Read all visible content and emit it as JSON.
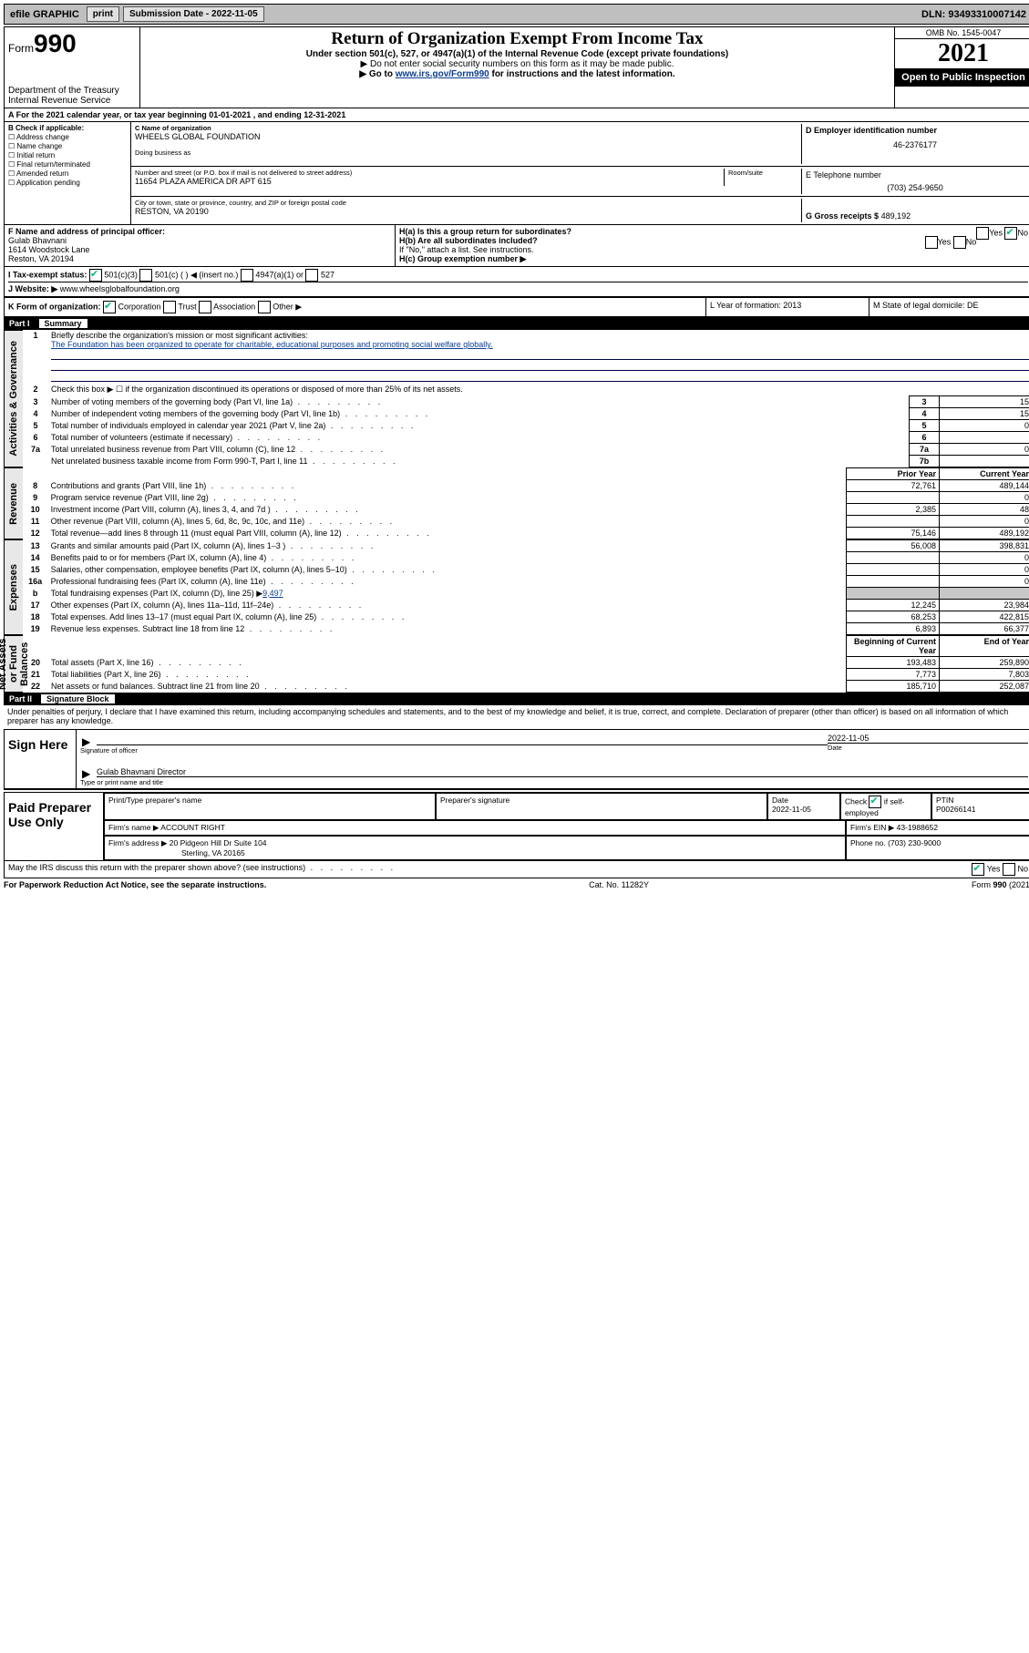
{
  "topbar": {
    "efile": "efile GRAPHIC",
    "print": "print",
    "subdate_label": "Submission Date - 2022-11-05",
    "dln": "DLN: 93493310007142"
  },
  "header": {
    "form_word": "Form",
    "form_num": "990",
    "dept": "Department of the Treasury",
    "irs": "Internal Revenue Service",
    "title": "Return of Organization Exempt From Income Tax",
    "sub1": "Under section 501(c), 527, or 4947(a)(1) of the Internal Revenue Code (except private foundations)",
    "sub2": "▶ Do not enter social security numbers on this form as it may be made public.",
    "sub3_pre": "▶ Go to ",
    "sub3_link": "www.irs.gov/Form990",
    "sub3_post": " for instructions and the latest information.",
    "omb": "OMB No. 1545-0047",
    "year": "2021",
    "open": "Open to Public Inspection"
  },
  "rowA": "A For the 2021 calendar year, or tax year beginning 01-01-2021    , and ending 12-31-2021",
  "colB": {
    "title": "B Check if applicable:",
    "addr": "Address change",
    "name": "Name change",
    "init": "Initial return",
    "final": "Final return/terminated",
    "amend": "Amended return",
    "app": "Application pending"
  },
  "colC": {
    "name_lbl": "C Name of organization",
    "name": "WHEELS GLOBAL FOUNDATION",
    "dba_lbl": "Doing business as",
    "addr_lbl": "Number and street (or P.O. box if mail is not delivered to street address)",
    "suite_lbl": "Room/suite",
    "addr": "11654 PLAZA AMERICA DR APT 615",
    "city_lbl": "City or town, state or province, country, and ZIP or foreign postal code",
    "city": "RESTON, VA  20190"
  },
  "colD": {
    "ein_lbl": "D Employer identification number",
    "ein": "46-2376177",
    "tel_lbl": "E Telephone number",
    "tel": "(703) 254-9650",
    "gross_lbl": "G Gross receipts $",
    "gross": "489,192"
  },
  "rowF": {
    "lbl": "F  Name and address of principal officer:",
    "name": "Gulab Bhavnani",
    "addr1": "1614 Woodstock Lane",
    "addr2": "Reston, VA  20194"
  },
  "rowH": {
    "ha": "H(a)  Is this a group return for subordinates?",
    "hb": "H(b)  Are all subordinates included?",
    "hb_note": "If \"No,\" attach a list. See instructions.",
    "hc": "H(c)  Group exemption number ▶",
    "yes": "Yes",
    "no": "No"
  },
  "rowI": {
    "lbl": "I     Tax-exempt status:",
    "c3": "501(c)(3)",
    "c": "501(c) (   ) ◀ (insert no.)",
    "a1": "4947(a)(1) or",
    "s527": "527"
  },
  "rowJ": {
    "lbl": "J    Website: ▶",
    "url": "www.wheelsglobalfoundation.org"
  },
  "rowK": {
    "lbl": "K Form of organization:",
    "corp": "Corporation",
    "trust": "Trust",
    "assoc": "Association",
    "other": "Other ▶"
  },
  "rowL": {
    "lbl": "L Year of formation: 2013"
  },
  "rowM": {
    "lbl": "M State of legal domicile: DE"
  },
  "part1": {
    "lbl": "Part I",
    "title": "Summary"
  },
  "summary": {
    "q1": "Briefly describe the organization's mission or most significant activities:",
    "mission": "The Foundation has been organized to operate for charitable, educational purposes and promoting social welfare globally.",
    "q2": "Check this box ▶ ☐  if the organization discontinued its operations or disposed of more than 25% of its net assets.",
    "rows": [
      {
        "n": "3",
        "d": "Number of voting members of the governing body (Part VI, line 1a)",
        "box": "3",
        "val": "15"
      },
      {
        "n": "4",
        "d": "Number of independent voting members of the governing body (Part VI, line 1b)",
        "box": "4",
        "val": "15"
      },
      {
        "n": "5",
        "d": "Total number of individuals employed in calendar year 2021 (Part V, line 2a)",
        "box": "5",
        "val": "0"
      },
      {
        "n": "6",
        "d": "Total number of volunteers (estimate if necessary)",
        "box": "6",
        "val": ""
      },
      {
        "n": "7a",
        "d": "Total unrelated business revenue from Part VIII, column (C), line 12",
        "box": "7a",
        "val": "0"
      },
      {
        "n": "",
        "d": "Net unrelated business taxable income from Form 990-T, Part I, line 11",
        "box": "7b",
        "val": ""
      }
    ],
    "rev_header_prior": "Prior Year",
    "rev_header_curr": "Current Year",
    "revenue": [
      {
        "n": "8",
        "d": "Contributions and grants (Part VIII, line 1h)",
        "p": "72,761",
        "c": "489,144"
      },
      {
        "n": "9",
        "d": "Program service revenue (Part VIII, line 2g)",
        "p": "",
        "c": "0"
      },
      {
        "n": "10",
        "d": "Investment income (Part VIII, column (A), lines 3, 4, and 7d )",
        "p": "2,385",
        "c": "48"
      },
      {
        "n": "11",
        "d": "Other revenue (Part VIII, column (A), lines 5, 6d, 8c, 9c, 10c, and 11e)",
        "p": "",
        "c": "0"
      },
      {
        "n": "12",
        "d": "Total revenue—add lines 8 through 11 (must equal Part VIII, column (A), line 12)",
        "p": "75,146",
        "c": "489,192"
      }
    ],
    "expenses": [
      {
        "n": "13",
        "d": "Grants and similar amounts paid (Part IX, column (A), lines 1–3 )",
        "p": "56,008",
        "c": "398,831"
      },
      {
        "n": "14",
        "d": "Benefits paid to or for members (Part IX, column (A), line 4)",
        "p": "",
        "c": "0"
      },
      {
        "n": "15",
        "d": "Salaries, other compensation, employee benefits (Part IX, column (A), lines 5–10)",
        "p": "",
        "c": "0"
      },
      {
        "n": "16a",
        "d": "Professional fundraising fees (Part IX, column (A), line 11e)",
        "p": "",
        "c": "0"
      }
    ],
    "line16b_lbl": "b",
    "line16b": "Total fundraising expenses (Part IX, column (D), line 25) ▶",
    "line16b_val": "9,497",
    "expenses2": [
      {
        "n": "17",
        "d": "Other expenses (Part IX, column (A), lines 11a–11d, 11f–24e)",
        "p": "12,245",
        "c": "23,984"
      },
      {
        "n": "18",
        "d": "Total expenses. Add lines 13–17 (must equal Part IX, column (A), line 25)",
        "p": "68,253",
        "c": "422,815"
      },
      {
        "n": "19",
        "d": "Revenue less expenses. Subtract line 18 from line 12",
        "p": "6,893",
        "c": "66,377"
      }
    ],
    "na_header_begin": "Beginning of Current Year",
    "na_header_end": "End of Year",
    "netassets": [
      {
        "n": "20",
        "d": "Total assets (Part X, line 16)",
        "p": "193,483",
        "c": "259,890"
      },
      {
        "n": "21",
        "d": "Total liabilities (Part X, line 26)",
        "p": "7,773",
        "c": "7,803"
      },
      {
        "n": "22",
        "d": "Net assets or fund balances. Subtract line 21 from line 20",
        "p": "185,710",
        "c": "252,087"
      }
    ],
    "side_activities": "Activities & Governance",
    "side_revenue": "Revenue",
    "side_expenses": "Expenses",
    "side_netassets": "Net Assets or Fund Balances"
  },
  "part2": {
    "lbl": "Part II",
    "title": "Signature Block"
  },
  "sig": {
    "penalty": "Under penalties of perjury, I declare that I have examined this return, including accompanying schedules and statements, and to the best of my knowledge and belief, it is true, correct, and complete. Declaration of preparer (other than officer) is based on all information of which preparer has any knowledge.",
    "sign_here": "Sign Here",
    "sig_officer": "Signature of officer",
    "date_lbl": "Date",
    "date": "2022-11-05",
    "officer_name": "Gulab Bhavnani  Director",
    "type_lbl": "Type or print name and title"
  },
  "prep": {
    "title": "Paid Preparer Use Only",
    "pt_lbl": "Print/Type preparer's name",
    "ps_lbl": "Preparer's signature",
    "date_lbl": "Date",
    "date": "2022-11-05",
    "check_lbl": "Check",
    "check_if": "if self-employed",
    "ptin_lbl": "PTIN",
    "ptin": "P00266141",
    "firm_name_lbl": "Firm's name   ▶",
    "firm_name": "ACCOUNT RIGHT",
    "firm_ein_lbl": "Firm's EIN ▶",
    "firm_ein": "43-1988652",
    "firm_addr_lbl": "Firm's address ▶",
    "firm_addr1": "20 Pidgeon Hill Dr Suite 104",
    "firm_addr2": "Sterling, VA  20165",
    "phone_lbl": "Phone no.",
    "phone": "(703) 230-9000"
  },
  "footer": {
    "discuss": "May the IRS discuss this return with the preparer shown above? (see instructions)",
    "yes": "Yes",
    "no": "No",
    "pra": "For Paperwork Reduction Act Notice, see the separate instructions.",
    "cat": "Cat. No. 11282Y",
    "form": "Form 990 (2021)"
  }
}
